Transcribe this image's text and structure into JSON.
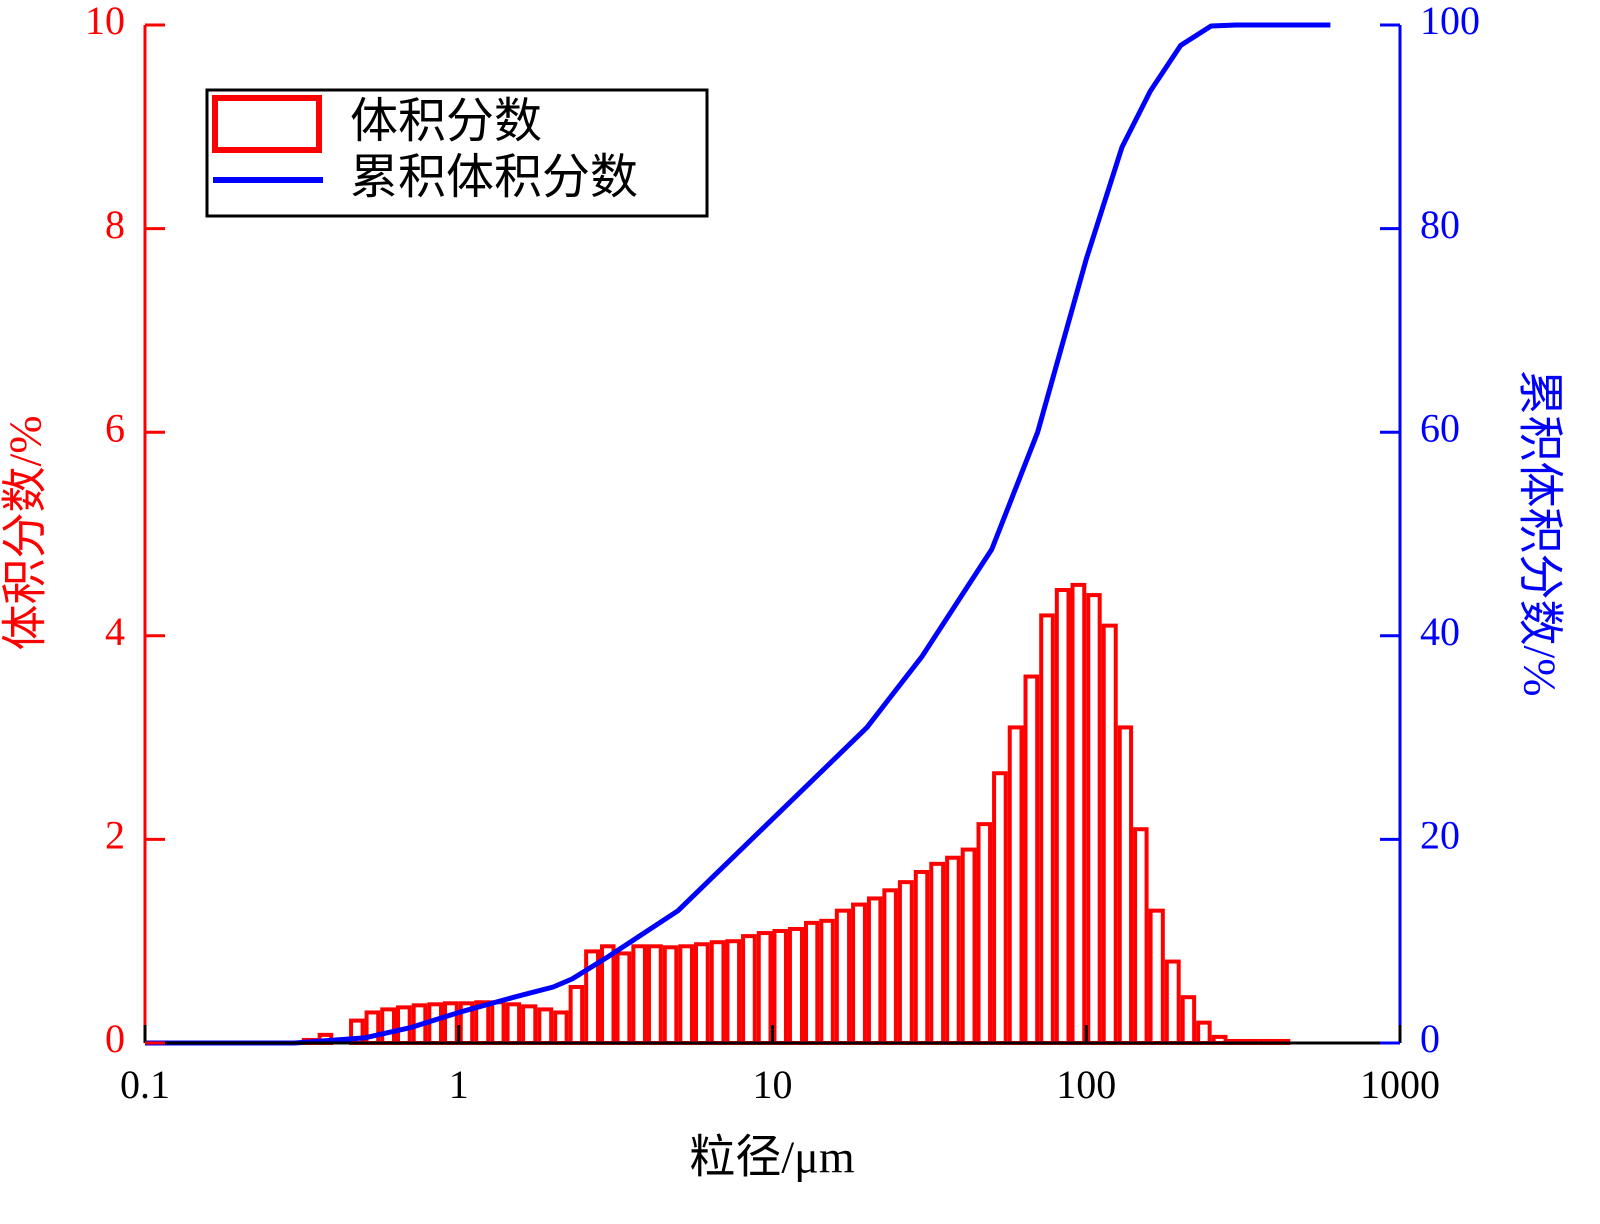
{
  "chart_data": {
    "type": "histogram",
    "xlabel": "粒径/μm",
    "ylabel": "体积分数/%",
    "y2label": "累积体积分数/%",
    "xscale": "log",
    "xlim": [
      0.1,
      1000
    ],
    "xticks": [
      0.1,
      1,
      10,
      100,
      1000
    ],
    "ylim": [
      0,
      10
    ],
    "yticks": [
      0,
      2,
      4,
      6,
      8,
      10
    ],
    "y2lim": [
      0,
      100
    ],
    "y2ticks": [
      0,
      20,
      40,
      60,
      80,
      100
    ],
    "legend": "upper left",
    "series": [
      {
        "name": "体积分数",
        "type": "histogram",
        "color": "#ff0000",
        "bins": [
          0.316,
          0.355,
          0.398,
          0.447,
          0.501,
          0.562,
          0.631,
          0.708,
          0.794,
          0.891,
          1,
          1.12,
          1.26,
          1.41,
          1.58,
          1.78,
          2,
          2.24,
          2.51,
          2.82,
          3.16,
          3.55,
          3.98,
          4.47,
          5.01,
          5.62,
          6.31,
          7.08,
          7.94,
          8.91,
          10,
          11.2,
          12.6,
          14.1,
          15.8,
          17.8,
          20,
          22.4,
          25.1,
          28.2,
          31.6,
          35.5,
          39.8,
          44.7,
          50.1,
          56.2,
          63.1,
          70.8,
          79.4,
          89.1,
          100,
          112,
          126,
          141,
          158,
          178,
          200,
          224,
          251,
          282,
          316,
          355,
          398,
          447
        ],
        "values": [
          0.03,
          0.08,
          0,
          0.22,
          0.3,
          0.33,
          0.35,
          0.37,
          0.38,
          0.39,
          0.39,
          0.4,
          0.4,
          0.38,
          0.36,
          0.33,
          0.3,
          0.55,
          0.9,
          0.95,
          0.88,
          0.95,
          0.95,
          0.94,
          0.95,
          0.97,
          0.99,
          1.0,
          1.05,
          1.08,
          1.1,
          1.12,
          1.18,
          1.2,
          1.3,
          1.36,
          1.42,
          1.5,
          1.58,
          1.68,
          1.76,
          1.82,
          1.9,
          2.15,
          2.65,
          3.1,
          3.6,
          4.2,
          4.45,
          4.5,
          4.4,
          4.1,
          3.1,
          2.1,
          1.3,
          0.8,
          0.45,
          0.2,
          0.06,
          0.02,
          0.02,
          0.02,
          0.02
        ]
      },
      {
        "name": "累积体积分数",
        "type": "line",
        "color": "#0000ff",
        "axis": "y2",
        "x": [
          0.1,
          0.3,
          0.5,
          0.7,
          1,
          1.5,
          2,
          2.3,
          3,
          5,
          10,
          20,
          30,
          50,
          70,
          100,
          130,
          160,
          200,
          250,
          300,
          600
        ],
        "values": [
          0,
          0,
          0.5,
          1.5,
          3,
          4.5,
          5.5,
          6.3,
          8.5,
          13,
          22,
          31,
          38,
          48.5,
          60,
          77,
          88,
          93.5,
          98,
          99.9,
          100,
          100
        ]
      }
    ]
  }
}
